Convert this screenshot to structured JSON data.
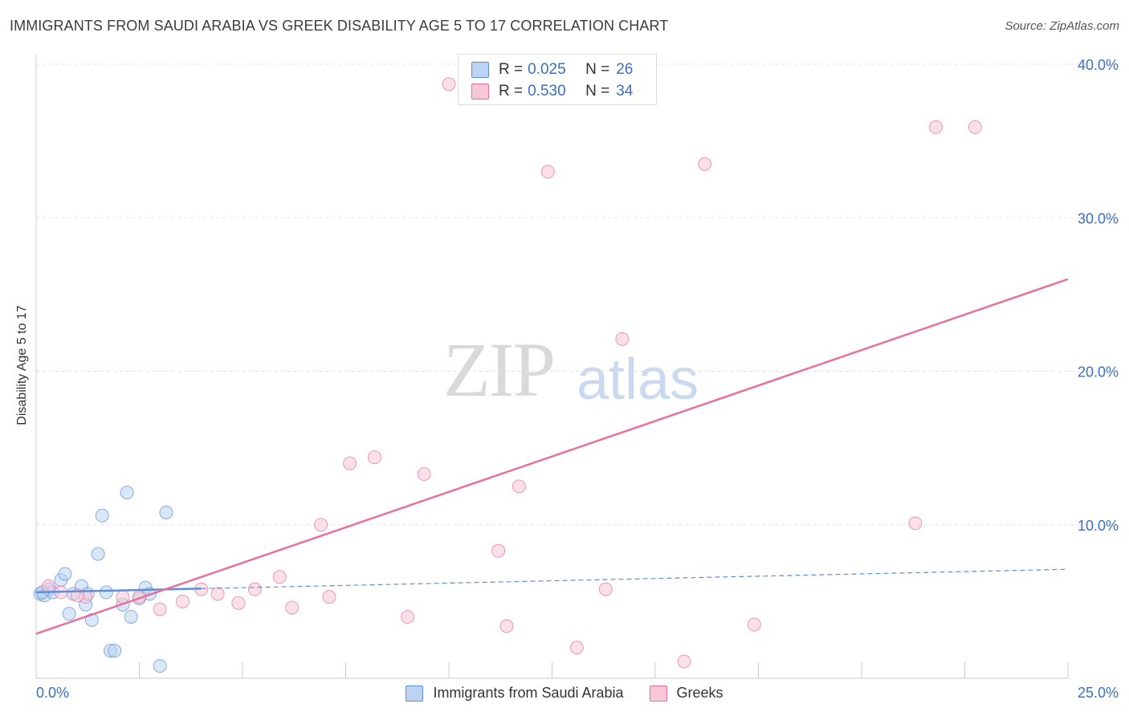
{
  "chart_data": {
    "type": "scatter",
    "title": "IMMIGRANTS FROM SAUDI ARABIA VS GREEK DISABILITY AGE 5 TO 17 CORRELATION CHART",
    "source": "Source: ZipAtlas.com",
    "xlabel": "",
    "ylabel": "Disability Age 5 to 17",
    "xlim": [
      0,
      25
    ],
    "ylim": [
      0,
      40
    ],
    "x_tick_labels": [
      "0.0%",
      "25.0%"
    ],
    "y_ticks": [
      10,
      20,
      30,
      40
    ],
    "y_tick_labels": [
      "10.0%",
      "20.0%",
      "30.0%",
      "40.0%"
    ],
    "watermark": {
      "part1": "ZIP",
      "part2": "atlas"
    },
    "legend": [
      {
        "r_label": "R =",
        "r_value": "0.025",
        "n_label": "N =",
        "n_value": "26",
        "color": "#aac7f0"
      },
      {
        "r_label": "R =",
        "r_value": "0.530",
        "n_label": "N =",
        "n_value": "34",
        "color": "#f5b8cc"
      }
    ],
    "series": [
      {
        "name": "Immigrants from Saudi Arabia",
        "color": "#5b8fd6",
        "fill": "#bcd3f3",
        "trend": {
          "x0": 0,
          "y0": 5.6,
          "x1": 25,
          "y1": 7.1,
          "solid_until": 4
        },
        "points": [
          [
            0.1,
            5.5
          ],
          [
            0.2,
            5.4
          ],
          [
            0.3,
            5.8
          ],
          [
            0.4,
            5.6
          ],
          [
            0.6,
            6.4
          ],
          [
            0.7,
            6.8
          ],
          [
            0.8,
            4.2
          ],
          [
            0.9,
            5.5
          ],
          [
            1.1,
            6.0
          ],
          [
            1.2,
            4.8
          ],
          [
            1.35,
            3.8
          ],
          [
            1.5,
            8.1
          ],
          [
            1.6,
            10.6
          ],
          [
            1.7,
            5.6
          ],
          [
            1.8,
            1.8
          ],
          [
            1.9,
            1.8
          ],
          [
            2.1,
            4.8
          ],
          [
            2.2,
            12.1
          ],
          [
            2.3,
            4.0
          ],
          [
            2.5,
            5.2
          ],
          [
            2.65,
            5.9
          ],
          [
            2.75,
            5.5
          ],
          [
            3.0,
            0.8
          ],
          [
            3.15,
            10.8
          ],
          [
            0.15,
            5.6
          ],
          [
            1.25,
            5.5
          ]
        ]
      },
      {
        "name": "Greeks",
        "color": "#e8709a",
        "fill": "#f8c6d6",
        "trend": {
          "x0": 0,
          "y0": 2.9,
          "x1": 25,
          "y1": 26.0
        },
        "points": [
          [
            0.3,
            6.0
          ],
          [
            1.2,
            5.3
          ],
          [
            2.1,
            5.3
          ],
          [
            2.5,
            5.3
          ],
          [
            3.0,
            4.5
          ],
          [
            3.55,
            5.0
          ],
          [
            4.0,
            5.8
          ],
          [
            4.4,
            5.5
          ],
          [
            4.9,
            4.9
          ],
          [
            5.3,
            5.8
          ],
          [
            5.9,
            6.6
          ],
          [
            6.2,
            4.6
          ],
          [
            6.9,
            10.0
          ],
          [
            7.1,
            5.3
          ],
          [
            7.6,
            14.0
          ],
          [
            8.2,
            14.4
          ],
          [
            9.0,
            4.0
          ],
          [
            9.4,
            13.3
          ],
          [
            10.0,
            38.7
          ],
          [
            11.2,
            8.3
          ],
          [
            11.4,
            3.4
          ],
          [
            11.7,
            12.5
          ],
          [
            12.4,
            33.0
          ],
          [
            13.1,
            2.0
          ],
          [
            13.8,
            5.8
          ],
          [
            14.2,
            22.1
          ],
          [
            15.7,
            1.1
          ],
          [
            16.2,
            33.5
          ],
          [
            17.4,
            3.5
          ],
          [
            21.3,
            10.1
          ],
          [
            21.8,
            35.9
          ],
          [
            22.75,
            35.9
          ],
          [
            0.6,
            5.6
          ],
          [
            1.0,
            5.4
          ]
        ]
      }
    ]
  }
}
